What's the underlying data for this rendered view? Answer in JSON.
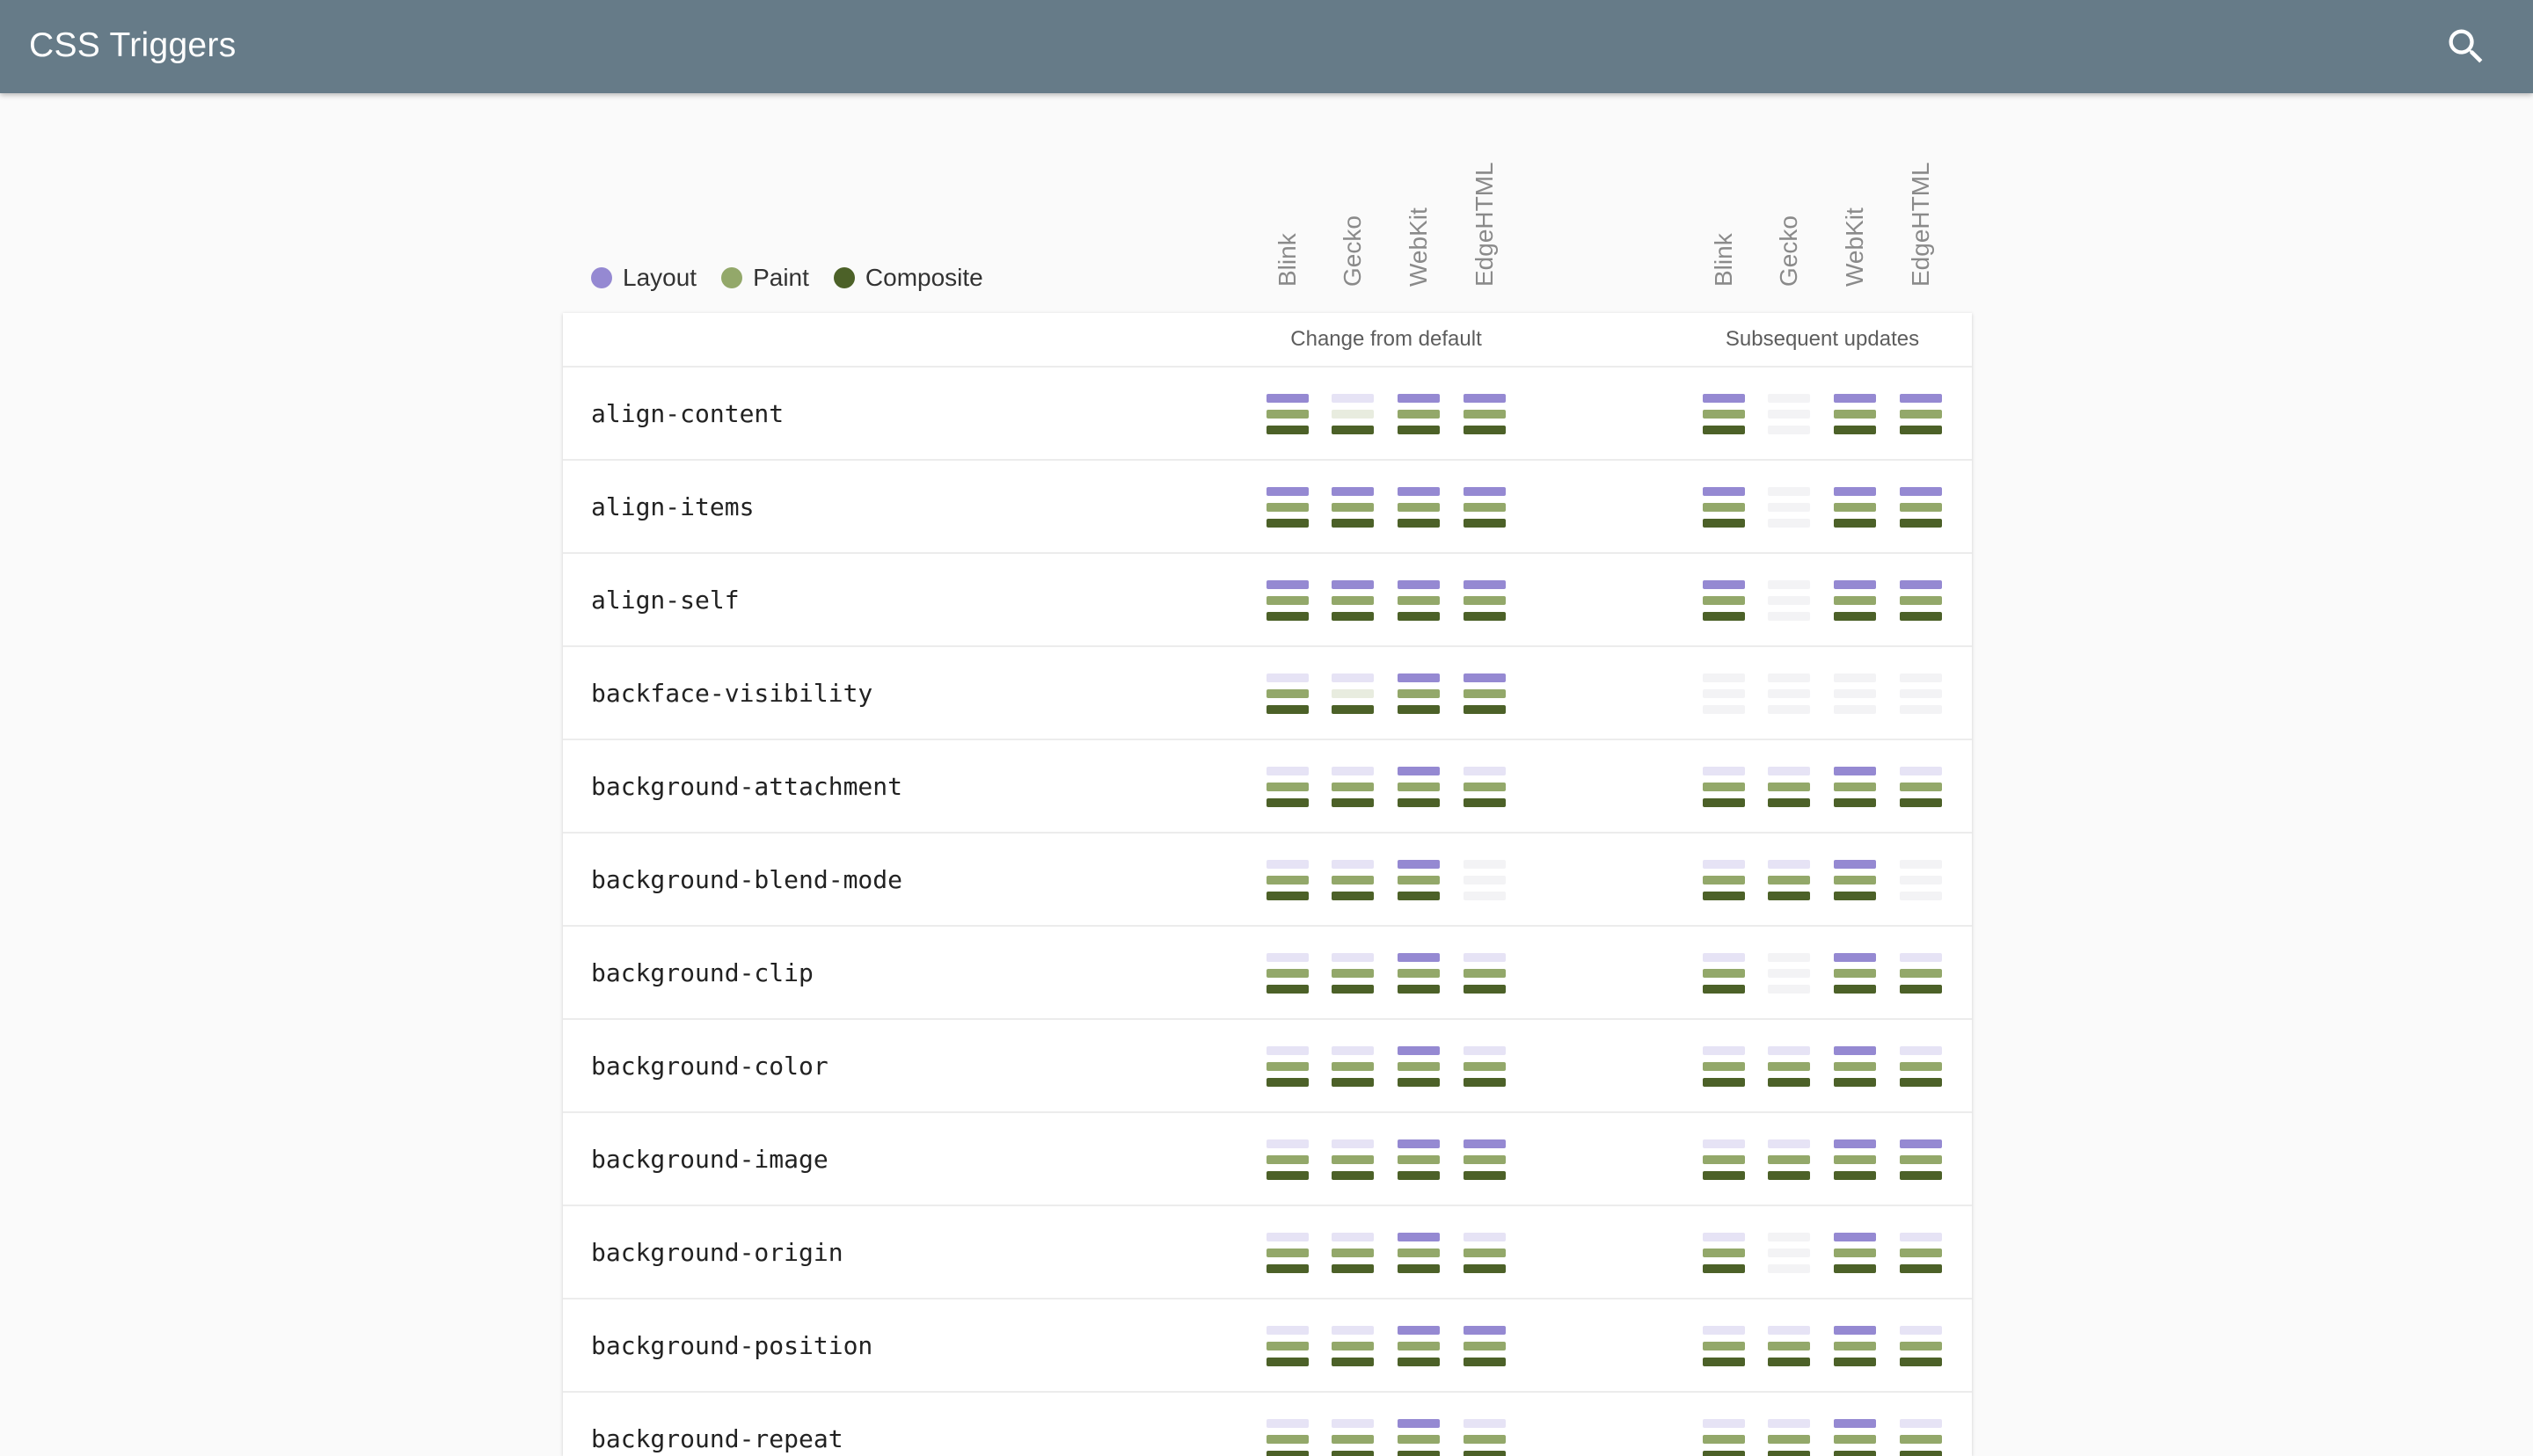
{
  "header": {
    "title": "CSS Triggers",
    "search_icon": "search-icon"
  },
  "legend": [
    {
      "label": "Layout",
      "color": "#9589d2"
    },
    {
      "label": "Paint",
      "color": "#93a86a"
    },
    {
      "label": "Composite",
      "color": "#4c6128"
    }
  ],
  "colors": {
    "layout_on": "#9589d2",
    "layout_off": "#e6e3f5",
    "paint_on": "#93a86a",
    "paint_off": "#e8ecdf",
    "composite_on": "#4c6128",
    "composite_off": "#e1e5d9",
    "none": "#f3f3f5"
  },
  "engines": [
    "Blink",
    "Gecko",
    "WebKit",
    "EdgeHTML"
  ],
  "groups": [
    "Change from default",
    "Subsequent updates"
  ],
  "properties": [
    {
      "name": "align-content",
      "change": [
        "lpc",
        "-",
        "lpc",
        "lpc"
      ],
      "update": [
        "lpc",
        "x",
        "lpc",
        "lpc"
      ]
    },
    {
      "name": "align-items",
      "change": [
        "lpc",
        "lpc",
        "lpc",
        "lpc"
      ],
      "update": [
        "lpc",
        "x",
        "lpc",
        "lpc"
      ]
    },
    {
      "name": "align-self",
      "change": [
        "lpc",
        "lpc",
        "lpc",
        "lpc"
      ],
      "update": [
        "lpc",
        "x",
        "lpc",
        "lpc"
      ]
    },
    {
      "name": "backface-visibility",
      "change": [
        "pc",
        "-",
        "lpc",
        "lpc"
      ],
      "update": [
        "x",
        "x",
        "x",
        "x"
      ]
    },
    {
      "name": "background-attachment",
      "change": [
        "pc",
        "pc",
        "lpc",
        "pc"
      ],
      "update": [
        "pc",
        "pc",
        "lpc",
        "pc"
      ]
    },
    {
      "name": "background-blend-mode",
      "change": [
        "pc",
        "pc",
        "lpc",
        "x"
      ],
      "update": [
        "pc",
        "pc",
        "lpc",
        "x"
      ]
    },
    {
      "name": "background-clip",
      "change": [
        "pc",
        "pc",
        "lpc",
        "pc"
      ],
      "update": [
        "pc",
        "x",
        "lpc",
        "pc"
      ]
    },
    {
      "name": "background-color",
      "change": [
        "pc",
        "pc",
        "lpc",
        "pc"
      ],
      "update": [
        "pc",
        "pc",
        "lpc",
        "pc"
      ]
    },
    {
      "name": "background-image",
      "change": [
        "pc",
        "pc",
        "lpc",
        "lpc"
      ],
      "update": [
        "pc",
        "pc",
        "lpc",
        "lpc"
      ]
    },
    {
      "name": "background-origin",
      "change": [
        "pc",
        "pc",
        "lpc",
        "pc"
      ],
      "update": [
        "pc",
        "x",
        "lpc",
        "pc"
      ]
    },
    {
      "name": "background-position",
      "change": [
        "pc",
        "pc",
        "lpc",
        "lpc"
      ],
      "update": [
        "pc",
        "pc",
        "lpc",
        "pc"
      ]
    },
    {
      "name": "background-repeat",
      "change": [
        "pc",
        "pc",
        "lpc",
        "pc"
      ],
      "update": [
        "pc",
        "pc",
        "lpc",
        "pc"
      ]
    }
  ]
}
